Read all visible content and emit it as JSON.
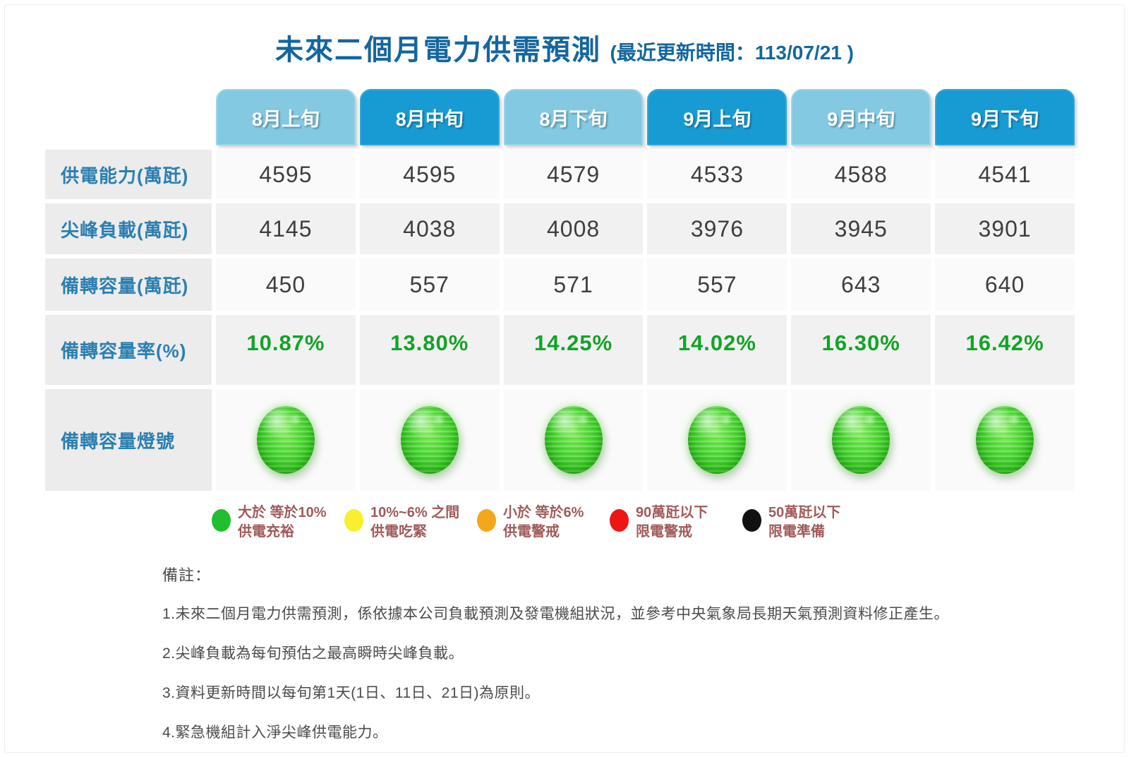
{
  "page": {
    "title": "未來二個月電力供需預測",
    "title_suffix": "(最近更新時間：113/07/21 )"
  },
  "table": {
    "columns": [
      "8月上旬",
      "8月中旬",
      "8月下旬",
      "9月上旬",
      "9月中旬",
      "9月下旬"
    ],
    "row_labels": [
      "供電能力(萬瓩)",
      "尖峰負載(萬瓩)",
      "備轉容量(萬瓩)",
      "備轉容量率(%)",
      "備轉容量燈號"
    ],
    "rows": {
      "supply": [
        "4595",
        "4595",
        "4579",
        "4533",
        "4588",
        "4541"
      ],
      "peak": [
        "4145",
        "4038",
        "4008",
        "3976",
        "3945",
        "3901"
      ],
      "reserve": [
        "450",
        "557",
        "571",
        "557",
        "643",
        "640"
      ],
      "reserve_rate": [
        "10.87%",
        "13.80%",
        "14.25%",
        "14.02%",
        "16.30%",
        "16.42%"
      ],
      "lights": [
        "green",
        "green",
        "green",
        "green",
        "green",
        "green"
      ]
    }
  },
  "legend": {
    "items": [
      {
        "color": "#1fbf2f",
        "name": "green-light",
        "line1": "大於 等於10%",
        "line2": "供電充裕"
      },
      {
        "color": "#f7ef2f",
        "name": "yellow-light",
        "line1": "10%~6% 之間",
        "line2": "供電吃緊"
      },
      {
        "color": "#f2a71d",
        "name": "orange-light",
        "line1": "小於 等於6%",
        "line2": "供電警戒"
      },
      {
        "color": "#ee1515",
        "name": "red-light",
        "line1": "90萬瓩以下",
        "line2": "限電警戒"
      },
      {
        "color": "#111111",
        "name": "black-light",
        "line1": "50萬瓩以下",
        "line2": "限電準備"
      }
    ]
  },
  "notes": {
    "heading": "備註：",
    "items": [
      "1.未來二個月電力供需預測，係依據本公司負載預測及發電機組狀況，並參考中央氣象局長期天氣預測資料修正產生。",
      "2.尖峰負載為每旬預估之最高瞬時尖峰負載。",
      "3.資料更新時間以每旬第1天(1日、11日、21日)為原則。",
      "4.緊急機組計入淨尖峰供電能力。"
    ]
  },
  "colors": {
    "title_blue": "#14669e",
    "tab_light_blue": "#83c9e2",
    "tab_dark_blue": "#189bd3",
    "row_label_blue": "#2b7fb0",
    "value_gray": "#3e3e3e",
    "rate_green": "#12a326",
    "legend_text_maroon": "#a15a5a",
    "status_light_green": "#3ecc2a"
  },
  "chart_data": {
    "type": "table",
    "title": "未來二個月電力供需預測",
    "updated": "113/07/21",
    "categories": [
      "8月上旬",
      "8月中旬",
      "8月下旬",
      "9月上旬",
      "9月中旬",
      "9月下旬"
    ],
    "series": [
      {
        "name": "供電能力(萬瓩)",
        "values": [
          4595,
          4595,
          4579,
          4533,
          4588,
          4541
        ]
      },
      {
        "name": "尖峰負載(萬瓩)",
        "values": [
          4145,
          4038,
          4008,
          3976,
          3945,
          3901
        ]
      },
      {
        "name": "備轉容量(萬瓩)",
        "values": [
          450,
          557,
          571,
          557,
          643,
          640
        ]
      },
      {
        "name": "備轉容量率(%)",
        "values": [
          10.87,
          13.8,
          14.25,
          14.02,
          16.3,
          16.42
        ]
      },
      {
        "name": "備轉容量燈號",
        "values": [
          "green",
          "green",
          "green",
          "green",
          "green",
          "green"
        ]
      }
    ],
    "legend": [
      "大於 等於10% 供電充裕 (綠)",
      "10%~6% 之間 供電吃緊 (黃)",
      "小於 等於6% 供電警戒 (橘)",
      "90萬瓩以下 限電警戒 (紅)",
      "50萬瓩以下 限電準備 (黑)"
    ]
  }
}
